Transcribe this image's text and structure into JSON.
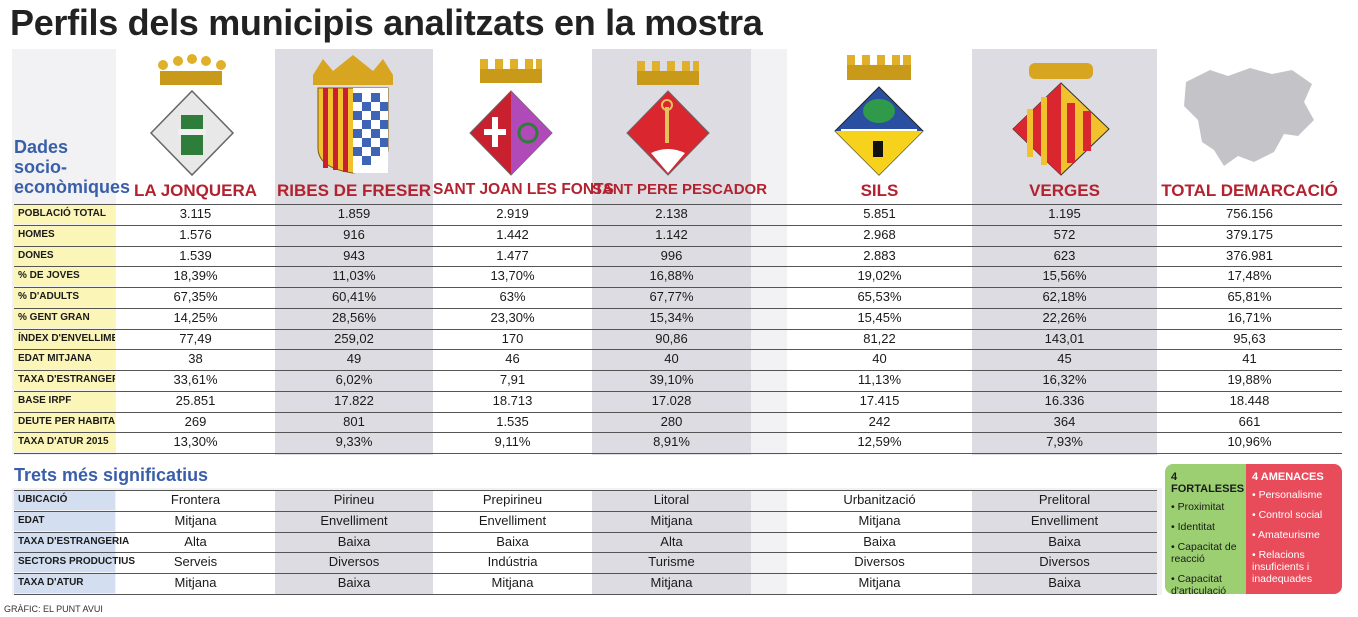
{
  "title": "Perfils dels municipis analitzats en la mostra",
  "section1": "Dades socio-econòmiques",
  "section1_lines": [
    "Dades",
    "socio-",
    "econòmiques"
  ],
  "section2": "Trets més significatius",
  "municipalities": [
    "LA JONQUERA",
    "RIBES DE FRESER",
    "SANT JOAN LES FONTS",
    "SANT PERE PESCADOR",
    "SILS",
    "VERGES",
    "TOTAL DEMARCACIÓ"
  ],
  "stats_rows": [
    {
      "label": "POBLACIÓ TOTAL",
      "values": [
        "3.115",
        "1.859",
        "2.919",
        "2.138",
        "5.851",
        "1.195",
        "756.156"
      ]
    },
    {
      "label": "HOMES",
      "values": [
        "1.576",
        "916",
        "1.442",
        "1.142",
        "2.968",
        "572",
        "379.175"
      ]
    },
    {
      "label": "DONES",
      "values": [
        "1.539",
        "943",
        "1.477",
        "996",
        "2.883",
        "623",
        "376.981"
      ]
    },
    {
      "label": "% DE JOVES",
      "values": [
        "18,39%",
        "11,03%",
        "13,70%",
        "16,88%",
        "19,02%",
        "15,56%",
        "17,48%"
      ]
    },
    {
      "label": "% D'ADULTS",
      "values": [
        "67,35%",
        "60,41%",
        "63%",
        "67,77%",
        "65,53%",
        "62,18%",
        "65,81%"
      ]
    },
    {
      "label": "% GENT GRAN",
      "values": [
        "14,25%",
        "28,56%",
        "23,30%",
        "15,34%",
        "15,45%",
        "22,26%",
        "16,71%"
      ]
    },
    {
      "label": "ÍNDEX D'ENVELLIMENT",
      "values": [
        "77,49",
        "259,02",
        "170",
        "90,86",
        "81,22",
        "143,01",
        "95,63"
      ]
    },
    {
      "label": "EDAT MITJANA",
      "values": [
        "38",
        "49",
        "46",
        "40",
        "40",
        "45",
        "41"
      ]
    },
    {
      "label": "TAXA D'ESTRANGERIA",
      "values": [
        "33,61%",
        "6,02%",
        "7,91",
        "39,10%",
        "11,13%",
        "16,32%",
        "19,88%"
      ]
    },
    {
      "label": "BASE IRPF",
      "values": [
        "25.851",
        "17.822",
        "18.713",
        "17.028",
        "17.415",
        "16.336",
        "18.448"
      ]
    },
    {
      "label": "DEUTE PER HABITANT (€)",
      "values": [
        "269",
        "801",
        "1.535",
        "280",
        "242",
        "364",
        "661"
      ]
    },
    {
      "label": "TAXA D'ATUR 2015",
      "values": [
        "13,30%",
        "9,33%",
        "9,11%",
        "8,91%",
        "12,59%",
        "7,93%",
        "10,96%"
      ]
    }
  ],
  "traits_rows": [
    {
      "label": "UBICACIÓ",
      "values": [
        "Frontera",
        "Pirineu",
        "Prepirineu",
        "Litoral",
        "Urbanització",
        "Prelitoral"
      ]
    },
    {
      "label": "EDAT",
      "values": [
        "Mitjana",
        "Envelliment",
        "Envelliment",
        "Mitjana",
        "Mitjana",
        "Envelliment"
      ]
    },
    {
      "label": "TAXA D'ESTRANGERIA",
      "values": [
        "Alta",
        "Baixa",
        "Baixa",
        "Alta",
        "Baixa",
        "Baixa"
      ]
    },
    {
      "label": "SECTORS PRODUCTIUS",
      "values": [
        "Serveis",
        "Diversos",
        "Indústria",
        "Turisme",
        "Diversos",
        "Diversos"
      ]
    },
    {
      "label": "TAXA D'ATUR",
      "values": [
        "Mitjana",
        "Baixa",
        "Mitjana",
        "Mitjana",
        "Mitjana",
        "Baixa"
      ]
    }
  ],
  "strengths": {
    "title": "4 FORTALESES",
    "items": [
      "Proximitat",
      "Identitat",
      "Capacitat de reacció",
      "Capacitat d'articulació"
    ],
    "color": "#9ccf71"
  },
  "threats": {
    "title": "4 AMENACES",
    "items": [
      "Personalisme",
      "Control social",
      "Amateurisme",
      "Relacions insuficients i inadequades"
    ],
    "color": "#e84b5a"
  },
  "credit": "GRÀFIC: EL PUNT AVUI",
  "colors": {
    "municipality_name": "#b3222f",
    "section_heading": "#3a5faa",
    "stats_label_bg": "#fbf5b8",
    "traits_label_bg": "#d3dff0"
  },
  "emblems": [
    "coat-of-arms-la-jonquera",
    "coat-of-arms-ribes-de-freser",
    "coat-of-arms-sant-joan-les-fonts",
    "coat-of-arms-sant-pere-pescador",
    "coat-of-arms-sils",
    "coat-of-arms-verges",
    "map-demarcacio"
  ]
}
